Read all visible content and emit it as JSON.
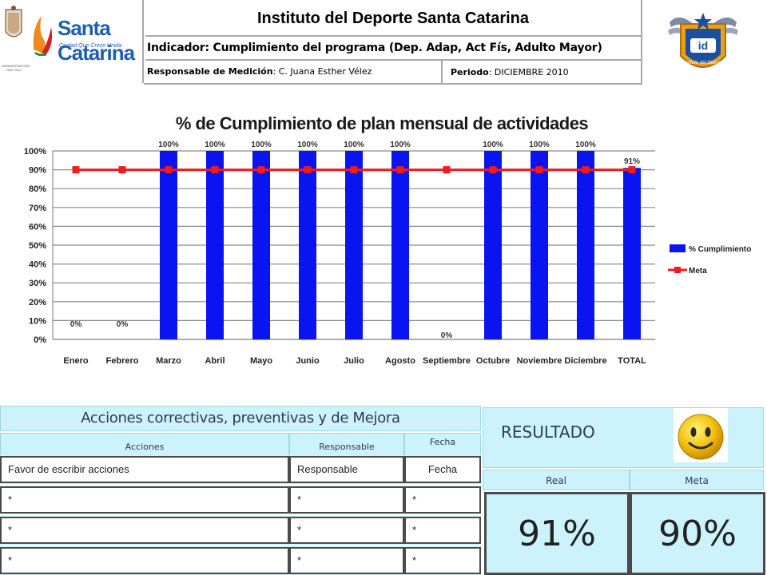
{
  "header": {
    "institute": "Instituto del Deporte Santa Catarina",
    "indicator": "Indicador: Cumplimiento del programa (Dep. Adap, Act Fís, Adulto Mayor)",
    "responsible_label": "Responsable de Medición",
    "responsible_value": "C. Juana Esther Vélez",
    "period_label": "Periodo",
    "period_value": "DICIEMBRE 2010",
    "left_logo_text": "Santa Catarina",
    "left_logo_sub": "Ciudad Que Crece Unida",
    "admin_text": "ADMINISTRACIÓN 2009 2012",
    "right_logo_text": "Instituto del Deporte"
  },
  "chart_data": {
    "type": "bar",
    "title": "% de Cumplimiento de plan mensual de actividades",
    "categories": [
      "Enero",
      "Febrero",
      "Marzo",
      "Abril",
      "Mayo",
      "Junio",
      "Julio",
      "Agosto",
      "Septiembre",
      "Octubre",
      "Noviembre",
      "Diciembre",
      "TOTAL"
    ],
    "series": [
      {
        "name": "% Cumplimiento",
        "type": "bar",
        "color": "#0a14f0",
        "values": [
          0,
          0,
          100,
          100,
          100,
          100,
          100,
          100,
          0,
          100,
          100,
          100,
          91
        ],
        "labels": [
          "0%",
          "0%",
          "100%",
          "100%",
          "100%",
          "100%",
          "100%",
          "100%",
          "0%",
          "100%",
          "100%",
          "100%",
          "91%"
        ]
      },
      {
        "name": "Meta",
        "type": "line",
        "color": "#ee1c1c",
        "values": [
          90,
          90,
          90,
          90,
          90,
          90,
          90,
          90,
          90,
          90,
          90,
          90,
          90
        ]
      }
    ],
    "yticks": [
      "0%",
      "10%",
      "20%",
      "30%",
      "40%",
      "50%",
      "60%",
      "70%",
      "80%",
      "90%",
      "100%"
    ],
    "ylim": [
      0,
      100
    ],
    "grid": true,
    "legend": "right"
  },
  "actions": {
    "title": "Acciones correctivas, preventivas y de Mejora",
    "col_actions": "Acciones",
    "col_responsible": "Responsable",
    "col_date": "Fecha",
    "rows": [
      {
        "action": "Favor de escribir acciones",
        "responsible": "Responsable",
        "date": "Fecha"
      },
      {
        "action": "*",
        "responsible": "*",
        "date": "*"
      },
      {
        "action": "*",
        "responsible": "*",
        "date": "*"
      },
      {
        "action": "*",
        "responsible": "*",
        "date": "*"
      }
    ]
  },
  "result": {
    "label": "RESULTADO",
    "real_label": "Real",
    "meta_label": "Meta",
    "real_value": "91%",
    "meta_value": "90%"
  }
}
